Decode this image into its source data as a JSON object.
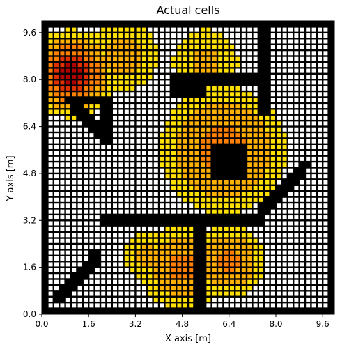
{
  "chart_data": {
    "type": "heatmap",
    "title": "Actual cells",
    "xlabel": "X axis [m]",
    "ylabel": "Y axis [m]",
    "xlim": [
      0.0,
      10.0
    ],
    "ylim": [
      0.0,
      10.0
    ],
    "x_ticks": [
      "0.0",
      "1.6",
      "3.2",
      "4.8",
      "6.4",
      "8.0",
      "9.6"
    ],
    "y_ticks": [
      "0.0",
      "1.6",
      "3.2",
      "4.8",
      "6.4",
      "8.0",
      "9.6"
    ],
    "x_tick_values": [
      0.0,
      1.6,
      3.2,
      4.8,
      6.4,
      8.0,
      9.6
    ],
    "y_tick_values": [
      0.0,
      1.6,
      3.2,
      4.8,
      6.4,
      8.0,
      9.6
    ],
    "cell_size_m": 0.2,
    "grid_cells": [
      50,
      50
    ],
    "value_range": [
      0,
      1
    ],
    "colormap": [
      "#ffffff",
      "#ffe000",
      "#ffb000",
      "#ff8000",
      "#e03000",
      "#b00000"
    ],
    "obstacle_color": "#000000",
    "border_cells": 1,
    "obstacle_rects": [
      {
        "x": [
          7.4,
          7.8
        ],
        "y": [
          6.8,
          10.0
        ]
      },
      {
        "x": [
          4.4,
          7.8
        ],
        "y": [
          7.8,
          8.2
        ]
      },
      {
        "x": [
          4.4,
          5.6
        ],
        "y": [
          7.4,
          7.8
        ]
      },
      {
        "x": [
          0.8,
          2.4
        ],
        "y": [
          7.2,
          7.4
        ]
      },
      {
        "x": [
          2.0,
          2.4
        ],
        "y": [
          5.8,
          7.2
        ]
      },
      {
        "x": [
          5.8,
          7.0
        ],
        "y": [
          4.6,
          5.8
        ]
      },
      {
        "x": [
          2.0,
          7.6
        ],
        "y": [
          3.0,
          3.4
        ]
      },
      {
        "x": [
          5.2,
          5.6
        ],
        "y": [
          0.0,
          3.0
        ]
      }
    ],
    "obstacle_diagonals": [
      {
        "from": [
          1.0,
          7.2
        ],
        "to": [
          2.0,
          6.0
        ]
      },
      {
        "from": [
          0.4,
          0.4
        ],
        "to": [
          1.8,
          2.0
        ]
      },
      {
        "from": [
          7.4,
          3.4
        ],
        "to": [
          8.8,
          5.0
        ]
      }
    ],
    "value_blobs": [
      {
        "center": [
          1.0,
          8.2
        ],
        "radius": 1.6,
        "peak": 1.0
      },
      {
        "center": [
          6.2,
          5.6
        ],
        "radius": 2.4,
        "peak": 0.6
      },
      {
        "center": [
          4.8,
          1.6
        ],
        "radius": 1.6,
        "peak": 0.55
      },
      {
        "center": [
          6.4,
          1.8
        ],
        "radius": 1.4,
        "peak": 0.55
      },
      {
        "center": [
          2.8,
          8.8
        ],
        "radius": 1.4,
        "peak": 0.35
      },
      {
        "center": [
          5.6,
          8.6
        ],
        "radius": 1.4,
        "peak": 0.3
      },
      {
        "center": [
          3.6,
          2.0
        ],
        "radius": 1.0,
        "peak": 0.3
      }
    ]
  }
}
